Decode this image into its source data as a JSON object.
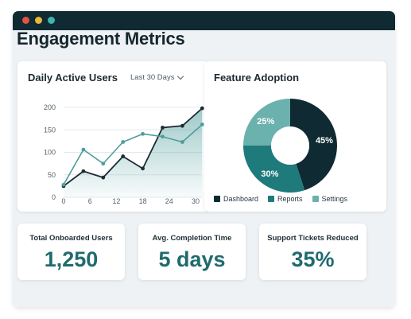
{
  "page": {
    "title": "Engagement Metrics"
  },
  "colors": {
    "titlebar": "#0f2a32",
    "accent_dark": "#0f2a32",
    "accent_mid": "#1f7a7c",
    "accent_light": "#6bb1ad",
    "stat_value": "#1f6b6f"
  },
  "dau_card": {
    "title": "Daily Active Users",
    "range_label": "Last 30 Days",
    "range_icon": "chevron-down-icon"
  },
  "adoption_card": {
    "title": "Feature Adoption"
  },
  "chart_data": [
    {
      "type": "line",
      "title": "Daily Active Users",
      "xlabel": "",
      "ylabel": "",
      "x_ticks": [
        0,
        6,
        12,
        18,
        24,
        30
      ],
      "y_ticks": [
        0,
        50,
        100,
        150,
        200
      ],
      "xlim": [
        0,
        30
      ],
      "ylim": [
        0,
        200
      ],
      "grid": true,
      "series": [
        {
          "color": "#1d2b33",
          "points": [
            [
              0,
              25
            ],
            [
              4.5,
              58
            ],
            [
              9,
              44
            ],
            [
              13.5,
              91
            ],
            [
              18,
              64
            ],
            [
              22.5,
              155
            ],
            [
              27,
              159
            ],
            [
              31.5,
              198
            ]
          ]
        },
        {
          "color": "#4f9e9c",
          "points": [
            [
              0,
              28
            ],
            [
              4.5,
              106
            ],
            [
              9,
              75
            ],
            [
              13.5,
              123
            ],
            [
              18,
              141
            ],
            [
              22.5,
              135
            ],
            [
              27,
              123
            ],
            [
              31.5,
              162
            ]
          ]
        }
      ]
    },
    {
      "type": "pie",
      "title": "Feature Adoption",
      "slices": [
        {
          "label": "Dashboard",
          "value": 45,
          "color": "#0f2a32"
        },
        {
          "label": "Reports",
          "value": 30,
          "color": "#1f7a7c"
        },
        {
          "label": "Settings",
          "value": 25,
          "color": "#6bb1ad"
        }
      ],
      "legend_position": "bottom"
    }
  ],
  "stats": [
    {
      "label": "Total Onboarded Users",
      "value": "1,250"
    },
    {
      "label": "Avg. Completion Time",
      "value": "5 days"
    },
    {
      "label": "Support Tickets Reduced",
      "value": "35%"
    }
  ]
}
